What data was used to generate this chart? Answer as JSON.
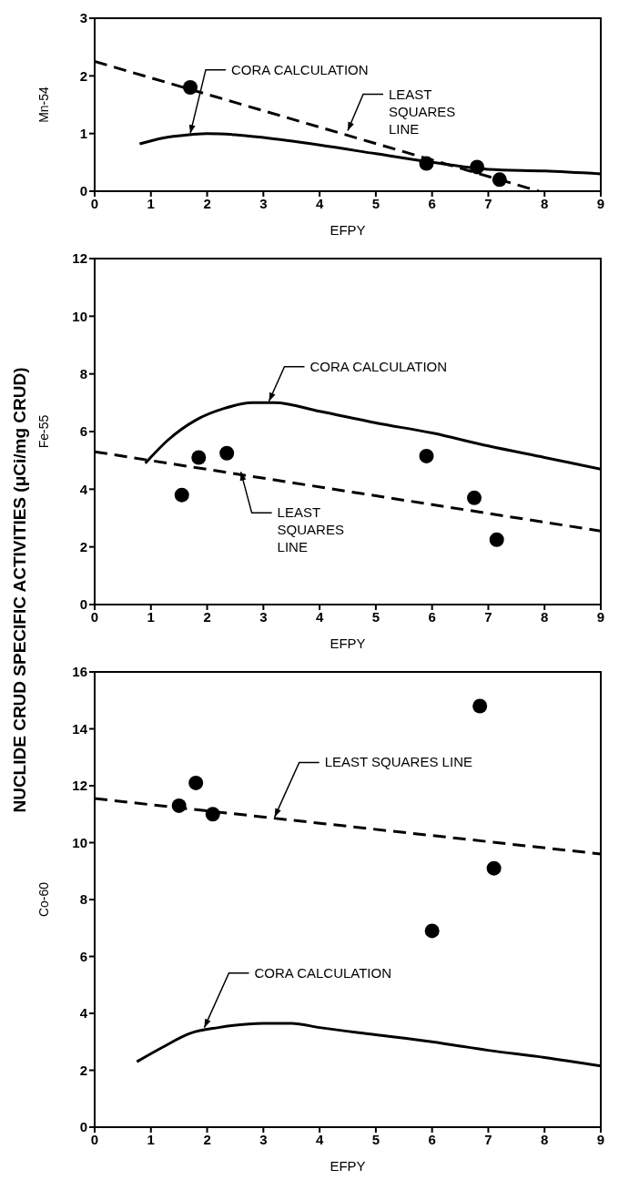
{
  "chart_data": [
    {
      "type": "scatter",
      "xlabel": "EFPY",
      "ylabel": "Mn-54",
      "xlim": [
        0,
        9
      ],
      "xticks": [
        0,
        1,
        2,
        3,
        4,
        5,
        6,
        7,
        8,
        9
      ],
      "ylim": [
        0,
        3
      ],
      "yticks": [
        0,
        1,
        2,
        3
      ],
      "grid": false,
      "series": [
        {
          "marker": "circle",
          "color": "#000000",
          "x": [
            1.7,
            5.9,
            6.8,
            7.2
          ],
          "values": [
            1.8,
            0.48,
            0.42,
            0.2
          ]
        },
        {
          "type": "line",
          "line_style": "dashed",
          "marker": "none",
          "color": "#000000",
          "x": [
            0,
            7.9
          ],
          "values": [
            2.25,
            0
          ]
        },
        {
          "type": "line",
          "line_style": "solid",
          "marker": "none",
          "color": "#000000",
          "x": [
            0.8,
            1.2,
            1.7,
            2,
            2.5,
            3,
            4,
            5,
            6,
            7,
            8,
            9
          ],
          "values": [
            0.82,
            0.92,
            0.98,
            1.0,
            0.98,
            0.93,
            0.8,
            0.65,
            0.5,
            0.38,
            0.35,
            0.3
          ]
        }
      ],
      "annotations": [
        {
          "text": "CORA CALCULATION",
          "x": 1.7,
          "y": 1.0
        },
        {
          "text": "LEAST SQUARES LINE",
          "x": 4.5,
          "y": 1.05
        }
      ]
    },
    {
      "type": "scatter",
      "xlabel": "EFPY",
      "ylabel": "Fe-55",
      "xlim": [
        0,
        9
      ],
      "xticks": [
        0,
        1,
        2,
        3,
        4,
        5,
        6,
        7,
        8,
        9
      ],
      "ylim": [
        0,
        12
      ],
      "yticks": [
        0,
        2,
        4,
        6,
        8,
        10,
        12
      ],
      "grid": false,
      "series": [
        {
          "marker": "circle",
          "color": "#000000",
          "x": [
            1.55,
            1.85,
            2.35,
            5.9,
            6.75,
            7.15
          ],
          "values": [
            3.8,
            5.1,
            5.25,
            5.15,
            3.7,
            2.25
          ]
        },
        {
          "type": "line",
          "line_style": "dashed",
          "marker": "none",
          "color": "#000000",
          "x": [
            0,
            9
          ],
          "values": [
            5.3,
            2.55
          ]
        },
        {
          "type": "line",
          "line_style": "solid",
          "marker": "none",
          "color": "#000000",
          "x": [
            0.9,
            1.3,
            1.8,
            2.3,
            2.8,
            3.2,
            4,
            5,
            6,
            7,
            8,
            9
          ],
          "values": [
            4.9,
            5.7,
            6.4,
            6.8,
            7.0,
            7.0,
            6.7,
            6.3,
            5.95,
            5.5,
            5.1,
            4.7
          ]
        }
      ],
      "annotations": [
        "NUCLIDE CRUD SPECIFIC ACTIVITIES (μCi/mg CRUD)",
        {
          "text": "CORA CALCULATION",
          "x": 3.1,
          "y": 7.05
        },
        {
          "text": "LEAST SQUARES LINE",
          "x": 2.6,
          "y": 4.6
        }
      ]
    },
    {
      "type": "scatter",
      "xlabel": "EFPY",
      "ylabel": "Co-60",
      "xlim": [
        0,
        9
      ],
      "xticks": [
        0,
        1,
        2,
        3,
        4,
        5,
        6,
        7,
        8,
        9
      ],
      "ylim": [
        0,
        16
      ],
      "yticks": [
        0,
        2,
        4,
        6,
        8,
        10,
        12,
        14,
        16
      ],
      "grid": false,
      "series": [
        {
          "marker": "circle",
          "color": "#000000",
          "x": [
            1.5,
            1.8,
            2.1,
            6.0,
            6.85,
            7.1
          ],
          "values": [
            11.3,
            12.1,
            11.0,
            6.9,
            14.8,
            9.1
          ]
        },
        {
          "type": "line",
          "line_style": "dashed",
          "marker": "none",
          "color": "#000000",
          "x": [
            0,
            9
          ],
          "values": [
            11.55,
            9.6
          ]
        },
        {
          "type": "line",
          "line_style": "solid",
          "marker": "none",
          "color": "#000000",
          "x": [
            0.75,
            1.2,
            1.7,
            2.2,
            3,
            3.5,
            4,
            5,
            6,
            7,
            8,
            9
          ],
          "values": [
            2.3,
            2.8,
            3.3,
            3.5,
            3.65,
            3.65,
            3.5,
            3.25,
            3.0,
            2.7,
            2.45,
            2.15
          ]
        }
      ],
      "annotations": [
        {
          "text": "LEAST SQUARES LINE",
          "x": 3.2,
          "y": 10.9
        },
        {
          "text": "CORA CALCULATION",
          "x": 1.95,
          "y": 3.5
        }
      ]
    }
  ]
}
